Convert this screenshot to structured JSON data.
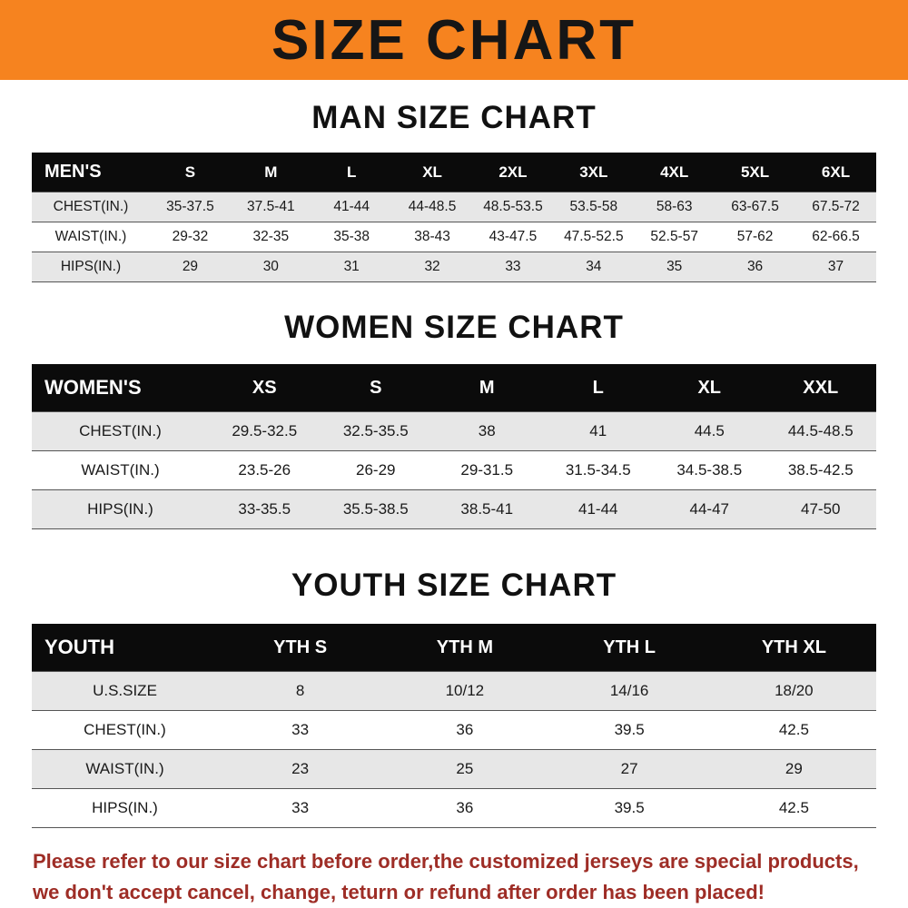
{
  "banner": {
    "title": "SIZE CHART"
  },
  "colors": {
    "banner_bg": "#F6831F",
    "header_row_bg": "#0B0B0B",
    "stripe_row_bg": "#E7E7E7",
    "footer_text": "#9E2D26"
  },
  "chart_data": [
    {
      "type": "table",
      "title": "MAN SIZE CHART",
      "columns": [
        "MEN'S",
        "S",
        "M",
        "L",
        "XL",
        "2XL",
        "3XL",
        "4XL",
        "5XL",
        "6XL"
      ],
      "rows": [
        [
          "CHEST(IN.)",
          "35-37.5",
          "37.5-41",
          "41-44",
          "44-48.5",
          "48.5-53.5",
          "53.5-58",
          "58-63",
          "63-67.5",
          "67.5-72"
        ],
        [
          "WAIST(IN.)",
          "29-32",
          "32-35",
          "35-38",
          "38-43",
          "43-47.5",
          "47.5-52.5",
          "52.5-57",
          "57-62",
          "62-66.5"
        ],
        [
          "HIPS(IN.)",
          "29",
          "30",
          "31",
          "32",
          "33",
          "34",
          "35",
          "36",
          "37"
        ]
      ]
    },
    {
      "type": "table",
      "title": "WOMEN SIZE CHART",
      "columns": [
        "WOMEN'S",
        "XS",
        "S",
        "M",
        "L",
        "XL",
        "XXL"
      ],
      "rows": [
        [
          "CHEST(IN.)",
          "29.5-32.5",
          "32.5-35.5",
          "38",
          "41",
          "44.5",
          "44.5-48.5"
        ],
        [
          "WAIST(IN.)",
          "23.5-26",
          "26-29",
          "29-31.5",
          "31.5-34.5",
          "34.5-38.5",
          "38.5-42.5"
        ],
        [
          "HIPS(IN.)",
          "33-35.5",
          "35.5-38.5",
          "38.5-41",
          "41-44",
          "44-47",
          "47-50"
        ]
      ]
    },
    {
      "type": "table",
      "title": "YOUTH SIZE CHART",
      "columns": [
        "YOUTH",
        "YTH S",
        "YTH M",
        "YTH L",
        "YTH XL"
      ],
      "rows": [
        [
          "U.S.SIZE",
          "8",
          "10/12",
          "14/16",
          "18/20"
        ],
        [
          "CHEST(IN.)",
          "33",
          "36",
          "39.5",
          "42.5"
        ],
        [
          "WAIST(IN.)",
          "23",
          "25",
          "27",
          "29"
        ],
        [
          "HIPS(IN.)",
          "33",
          "36",
          "39.5",
          "42.5"
        ]
      ]
    }
  ],
  "footer": {
    "line1": "Please refer to our size chart before order,the customized jerseys are special products,",
    "line2": "we don't accept cancel, change, teturn or refund after order has been placed!"
  }
}
